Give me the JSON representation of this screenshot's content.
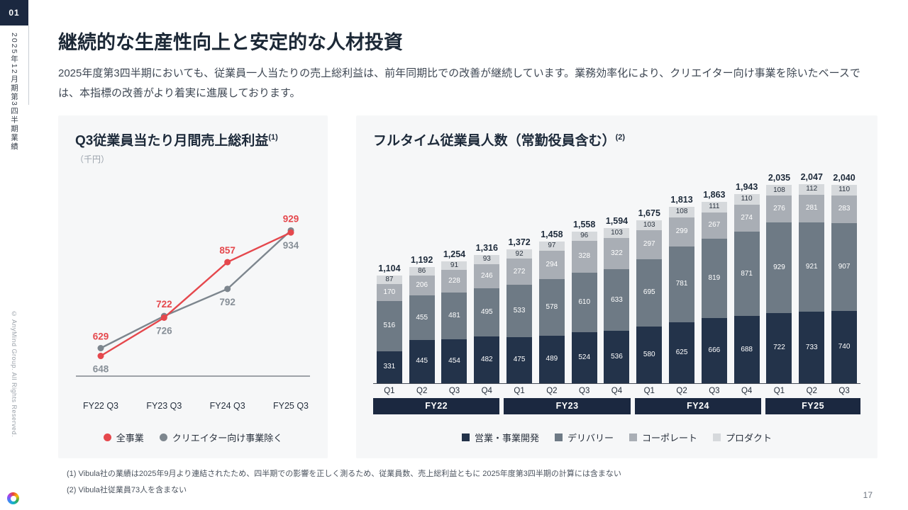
{
  "page": {
    "section_number": "01",
    "sidebar_vertical_text": "2025年12月期第3四半期業績",
    "copyright": "© AnyMind Group. All Rights Reserved.",
    "title": "継続的な生産性向上と安定的な人材投資",
    "body": "2025年度第3四半期においても、従業員一人当たりの売上総利益は、前年同期比での改善が継続しています。業務効率化により、クリエイター向け事業を除いたベースでは、本指標の改善がより着実に進展しております。",
    "footnotes": [
      "(1) Vibula社の業績は2025年9月より連結されたため、四半期での影響を正しく測るため、従業員数、売上総利益ともに 2025年度第3四半期の計算には含まない",
      "(2) Vibula社従業員73人を含まない"
    ],
    "page_number": "17"
  },
  "colors": {
    "navy": "#1b2840",
    "red": "#e5484d",
    "gray_line": "#7d868e",
    "card_bg": "#f6f7f8"
  },
  "chart_data": [
    {
      "type": "line",
      "title": "Q3従業員当たり月間売上総利益",
      "title_sup": "(1)",
      "subtitle": "（千円）",
      "categories": [
        "FY22 Q3",
        "FY23 Q3",
        "FY24 Q3",
        "FY25 Q3"
      ],
      "series": [
        {
          "name": "全事業",
          "color": "#e5484d",
          "values": [
            629,
            722,
            857,
            929
          ]
        },
        {
          "name": "クリエイター向け事業除く",
          "color": "#7d868e",
          "values": [
            648,
            726,
            792,
            934
          ]
        }
      ],
      "ylim": [
        580,
        1000
      ],
      "grid": false,
      "legend_position": "bottom"
    },
    {
      "type": "bar",
      "stacked": true,
      "title": "フルタイム従業員人数（常勤役員含む）",
      "title_sup": "(2)",
      "categories": [
        "Q1",
        "Q2",
        "Q3",
        "Q4",
        "Q1",
        "Q2",
        "Q3",
        "Q4",
        "Q1",
        "Q2",
        "Q3",
        "Q4",
        "Q1",
        "Q2",
        "Q3"
      ],
      "groups": [
        {
          "label": "FY22",
          "span": 4
        },
        {
          "label": "FY23",
          "span": 4
        },
        {
          "label": "FY24",
          "span": 4
        },
        {
          "label": "FY25",
          "span": 3
        }
      ],
      "series": [
        {
          "name": "営業・事業開発",
          "color": "#23334a",
          "text_color": "#ffffff",
          "values": [
            331,
            445,
            454,
            482,
            475,
            489,
            524,
            536,
            580,
            625,
            666,
            688,
            722,
            733,
            740
          ]
        },
        {
          "name": "デリバリー",
          "color": "#6e7a85",
          "text_color": "#ffffff",
          "values": [
            516,
            455,
            481,
            495,
            533,
            578,
            610,
            633,
            695,
            781,
            819,
            871,
            929,
            921,
            907
          ]
        },
        {
          "name": "コーポレート",
          "color": "#a9aeb5",
          "text_color": "#ffffff",
          "values": [
            170,
            206,
            228,
            246,
            272,
            294,
            328,
            322,
            297,
            299,
            267,
            274,
            276,
            281,
            283
          ]
        },
        {
          "name": "プロダクト",
          "color": "#d6d9dc",
          "text_color": "#2b3440",
          "values": [
            87,
            86,
            91,
            93,
            92,
            97,
            96,
            103,
            103,
            108,
            111,
            110,
            108,
            112,
            110
          ]
        }
      ],
      "totals": [
        "1,104",
        "1,192",
        "1,254",
        "1,316",
        "1,372",
        "1,458",
        "1,558",
        "1,594",
        "1,675",
        "1,813",
        "1,863",
        "1,943",
        "2,035",
        "2,047",
        "2,040"
      ],
      "ylim": [
        0,
        2100
      ],
      "legend_position": "bottom"
    }
  ]
}
